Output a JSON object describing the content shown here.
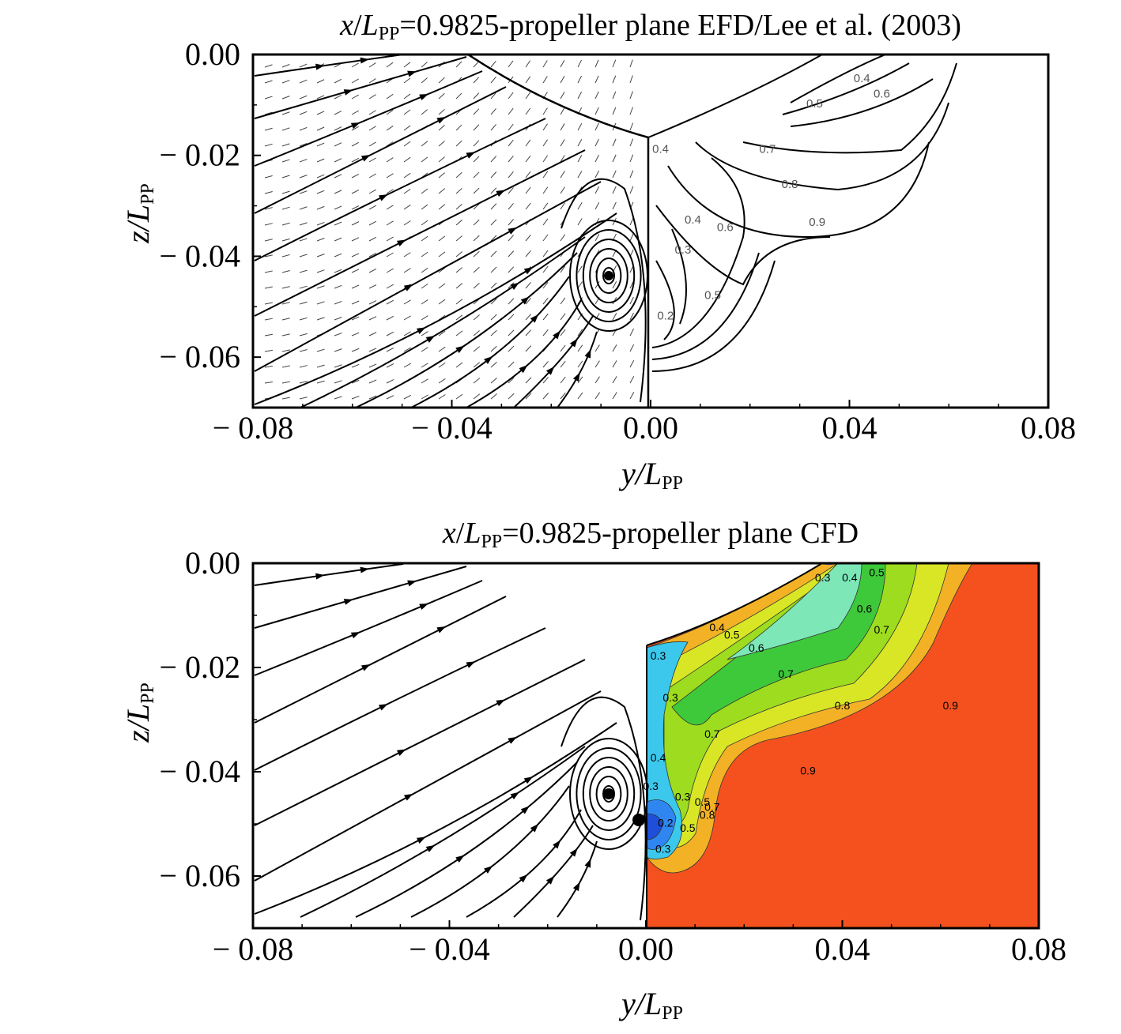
{
  "chart_data": [
    {
      "type": "contour",
      "title": {
        "var_x": "x",
        "var_L": "L",
        "subscript": "PP",
        "rest": "=0.9825-propeller plane EFD/Lee et al. (2003)"
      },
      "xlabel": {
        "var_y": "y",
        "var_L": "L",
        "subscript": "PP"
      },
      "ylabel": {
        "var_z": "z",
        "var_L": "L",
        "subscript": "PP"
      },
      "xlim": [
        -0.08,
        0.08
      ],
      "ylim": [
        0.0,
        -0.07
      ],
      "x_ticks": [
        "− 0.08",
        "− 0.04",
        "0.00",
        "0.04",
        "0.08"
      ],
      "x_tick_values": [
        -0.08,
        -0.04,
        0.0,
        0.04,
        0.08
      ],
      "y_ticks": [
        "0.00",
        "− 0.02",
        "− 0.04",
        "− 0.06"
      ],
      "y_tick_values": [
        0.0,
        -0.02,
        -0.04,
        -0.06
      ],
      "left_half": "streamlines and velocity vectors",
      "right_half": "axial velocity contour lines",
      "vortex_center": [
        -0.0085,
        -0.0435
      ],
      "contour_labels": [
        {
          "label": "0.4",
          "y": 0.0425,
          "z": -0.0055
        },
        {
          "label": "0.5",
          "y": 0.033,
          "z": -0.0105
        },
        {
          "label": "0.6",
          "y": 0.0465,
          "z": -0.0085
        },
        {
          "label": "0.7",
          "y": 0.0235,
          "z": -0.0195
        },
        {
          "label": "0.8",
          "y": 0.028,
          "z": -0.0265
        },
        {
          "label": "0.9",
          "y": 0.0335,
          "z": -0.034
        },
        {
          "label": "0.4",
          "y": 0.002,
          "z": -0.0195
        },
        {
          "label": "0.4",
          "y": 0.0085,
          "z": -0.0335
        },
        {
          "label": "0.3",
          "y": 0.0065,
          "z": -0.0395
        },
        {
          "label": "0.6",
          "y": 0.015,
          "z": -0.035
        },
        {
          "label": "0.5",
          "y": 0.0125,
          "z": -0.0485
        },
        {
          "label": "0.2",
          "y": 0.003,
          "z": -0.0525
        }
      ]
    },
    {
      "type": "contour",
      "title": {
        "var_x": "x",
        "var_L": "L",
        "subscript": "PP",
        "rest": "=0.9825-propeller plane CFD"
      },
      "xlabel": {
        "var_y": "y",
        "var_L": "L",
        "subscript": "PP"
      },
      "ylabel": {
        "var_z": "z",
        "var_L": "L",
        "subscript": "PP"
      },
      "xlim": [
        -0.08,
        0.08
      ],
      "ylim": [
        0.0,
        -0.07
      ],
      "x_ticks": [
        "− 0.08",
        "− 0.04",
        "0.00",
        "0.04",
        "0.08"
      ],
      "x_tick_values": [
        -0.08,
        -0.04,
        0.0,
        0.04,
        0.08
      ],
      "y_ticks": [
        "0.00",
        "− 0.02",
        "− 0.04",
        "− 0.06"
      ],
      "y_tick_values": [
        0.0,
        -0.02,
        -0.04,
        -0.06
      ],
      "left_half": "streamlines",
      "right_half": "filled axial velocity contours",
      "vortex_center": [
        -0.0085,
        -0.0445
      ],
      "levels": [
        0.2,
        0.3,
        0.4,
        0.5,
        0.6,
        0.7,
        0.8,
        0.9
      ],
      "level_colors": [
        "#1f4fd8",
        "#2f86f0",
        "#3cc8ec",
        "#7de7b8",
        "#3ec93a",
        "#9ddc1e",
        "#d9e626",
        "#f3b225",
        "#f4511e"
      ],
      "contour_labels": [
        {
          "label": "0.3",
          "y": 0.036,
          "z": -0.0035
        },
        {
          "label": "0.4",
          "y": 0.0415,
          "z": -0.0035
        },
        {
          "label": "0.5",
          "y": 0.047,
          "z": -0.0025
        },
        {
          "label": "0.6",
          "y": 0.0445,
          "z": -0.0095
        },
        {
          "label": "0.7",
          "y": 0.048,
          "z": -0.0135
        },
        {
          "label": "0.4",
          "y": 0.0145,
          "z": -0.013
        },
        {
          "label": "0.5",
          "y": 0.0175,
          "z": -0.0145
        },
        {
          "label": "0.6",
          "y": 0.0225,
          "z": -0.017
        },
        {
          "label": "0.7",
          "y": 0.0285,
          "z": -0.022
        },
        {
          "label": "0.8",
          "y": 0.04,
          "z": -0.028
        },
        {
          "label": "0.9",
          "y": 0.062,
          "z": -0.028
        },
        {
          "label": "0.9",
          "y": 0.033,
          "z": -0.0405
        },
        {
          "label": "0.3",
          "y": 0.0025,
          "z": -0.0185
        },
        {
          "label": "0.3",
          "y": 0.005,
          "z": -0.0265
        },
        {
          "label": "0.7",
          "y": 0.0135,
          "z": -0.0335
        },
        {
          "label": "0.4",
          "y": 0.0025,
          "z": -0.038
        },
        {
          "label": "0.3",
          "y": 0.001,
          "z": -0.0435
        },
        {
          "label": "0.3",
          "y": 0.0075,
          "z": -0.0455
        },
        {
          "label": "0.5",
          "y": 0.0115,
          "z": -0.0465
        },
        {
          "label": "0.7",
          "y": 0.0135,
          "z": -0.0475
        },
        {
          "label": "0.8",
          "y": 0.0125,
          "z": -0.049
        },
        {
          "label": "0.2",
          "y": 0.004,
          "z": -0.0505
        },
        {
          "label": "0.5",
          "y": 0.0085,
          "z": -0.0515
        },
        {
          "label": "0.3",
          "y": 0.0035,
          "z": -0.0555
        }
      ]
    }
  ]
}
